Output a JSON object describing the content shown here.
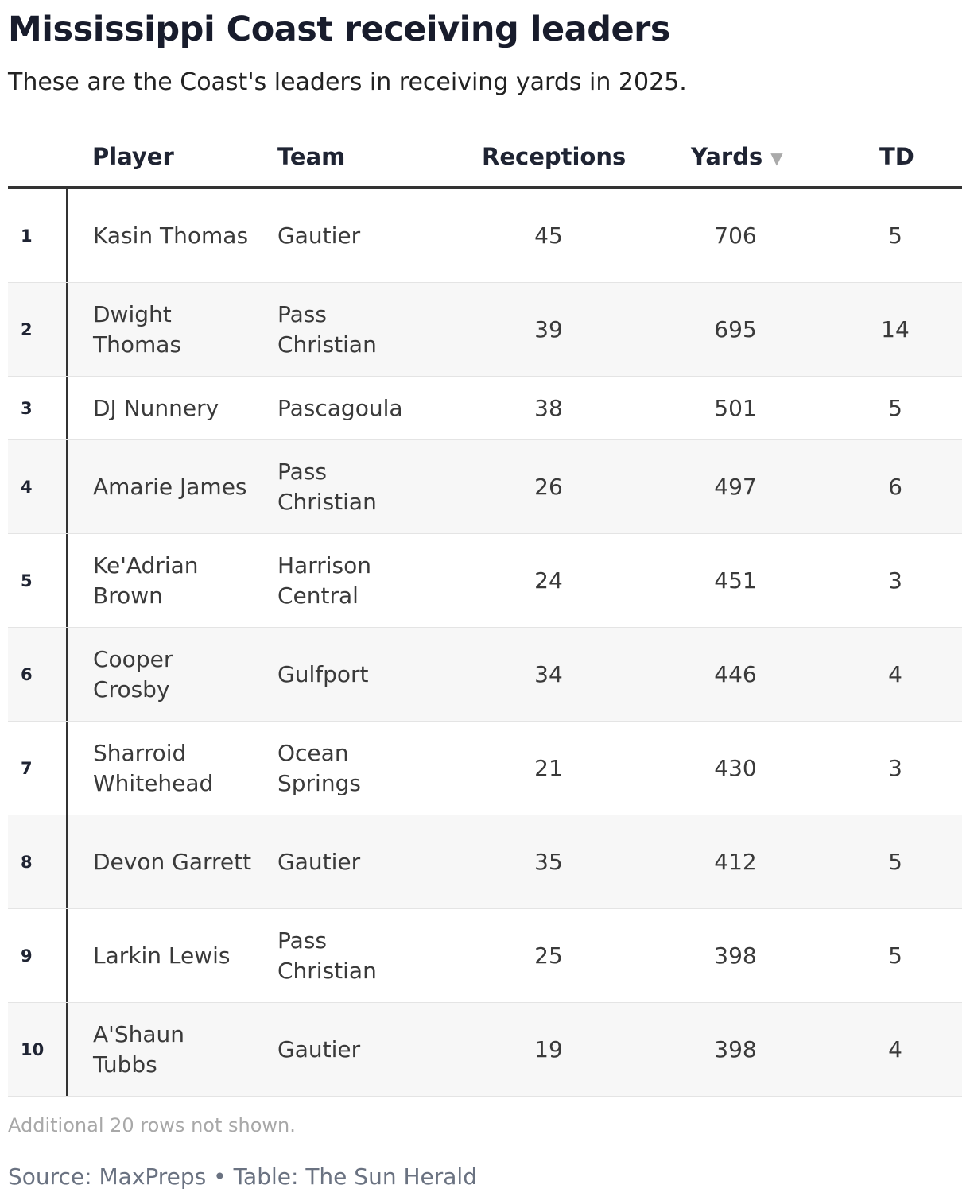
{
  "title": "Mississippi Coast receiving leaders",
  "subtitle": "These are the Coast's leaders in receiving yards in 2025.",
  "columns": {
    "player": "Player",
    "team": "Team",
    "receptions": "Receptions",
    "yards": "Yards",
    "td": "TD"
  },
  "sort": {
    "column": "yards",
    "direction": "descending",
    "icon": "sort-down-icon"
  },
  "footnote": "Additional 20 rows not shown.",
  "source": "Source: MaxPreps • Table: The Sun Herald",
  "chart_data": {
    "type": "table",
    "columns": [
      "",
      "Player",
      "Team",
      "Receptions",
      "Yards",
      "TD"
    ],
    "rows": [
      {
        "rank": "1",
        "player": "Kasin Thomas",
        "team": "Gautier",
        "receptions": "45",
        "yards": "706",
        "td": "5"
      },
      {
        "rank": "2",
        "player": "Dwight Thomas",
        "team": "Pass Christian",
        "receptions": "39",
        "yards": "695",
        "td": "14"
      },
      {
        "rank": "3",
        "player": "DJ Nunnery",
        "team": "Pascagoula",
        "receptions": "38",
        "yards": "501",
        "td": "5"
      },
      {
        "rank": "4",
        "player": "Amarie James",
        "team": "Pass Christian",
        "receptions": "26",
        "yards": "497",
        "td": "6"
      },
      {
        "rank": "5",
        "player": "Ke'Adrian Brown",
        "team": "Harrison Central",
        "receptions": "24",
        "yards": "451",
        "td": "3"
      },
      {
        "rank": "6",
        "player": "Cooper Crosby",
        "team": "Gulfport",
        "receptions": "34",
        "yards": "446",
        "td": "4"
      },
      {
        "rank": "7",
        "player": "Sharroid Whitehead",
        "team": "Ocean Springs",
        "receptions": "21",
        "yards": "430",
        "td": "3"
      },
      {
        "rank": "8",
        "player": "Devon Garrett",
        "team": "Gautier",
        "receptions": "35",
        "yards": "412",
        "td": "5"
      },
      {
        "rank": "9",
        "player": "Larkin Lewis",
        "team": "Pass Christian",
        "receptions": "25",
        "yards": "398",
        "td": "5"
      },
      {
        "rank": "10",
        "player": "A'Shaun Tubbs",
        "team": "Gautier",
        "receptions": "19",
        "yards": "398",
        "td": "4"
      }
    ]
  }
}
